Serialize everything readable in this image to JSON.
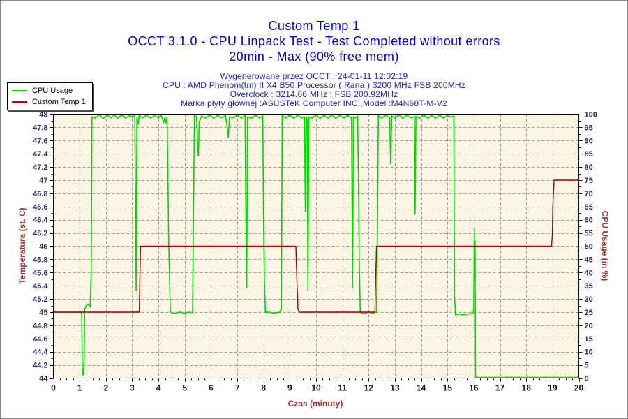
{
  "titles": {
    "line1": "Custom Temp 1",
    "line2": "OCCT 3.1.0 - CPU Linpack Test - Test Completed without errors",
    "line3": "20min - Max (90% free mem)"
  },
  "info": {
    "line1": "Wygenerowane przez OCCT : 24-01-11 12:02:19",
    "line2": "CPU : AMD Phenom(tm) II X4 B50 Processor ( Rana ) 3200 MHz FSB 200MHz",
    "line3": "Overclock : 3214.66 MHz ; FSB 200.92MHz",
    "line4": "Marka płyty głównej :ASUSTeK Computer INC.,Model :M4N68T-M-V2"
  },
  "legend": {
    "items": [
      {
        "label": "CPU Usage",
        "color": "#00d800"
      },
      {
        "label": "Custom Temp 1",
        "color": "#a00808"
      }
    ]
  },
  "colors": {
    "title_blue": "#0000e0",
    "info_blue": "#2222cc",
    "plot_bg": "#fcf5e3",
    "grid": "#999999",
    "axis": "#000000",
    "y_tick_label": "#2a2a5e",
    "x_tick_label": "#111111",
    "axis_title_red": "#a23333",
    "cpu_green": "#00d800",
    "temp_red": "#a00808"
  },
  "chart_data": {
    "type": "line",
    "title": "Custom Temp 1",
    "xlabel": "Czas (minuty)",
    "ylabel_left": "Temperatura (st. C)",
    "ylabel_right": "CPU Usage (in %)",
    "grid": true,
    "legend_position": "top-left",
    "xlim": [
      0,
      20
    ],
    "x_major": 1,
    "x_minor": 0.25,
    "ylim_left": [
      44,
      48
    ],
    "y_left_major": 0.2,
    "y_left_minor": 0.1,
    "ylim_right": [
      0,
      100
    ],
    "y_right_major": 5,
    "y_right_minor": 2.5,
    "series": [
      {
        "name": "CPU Usage",
        "axis": "right",
        "unit": "%",
        "points": [
          [
            0,
            25
          ],
          [
            0.5,
            25
          ],
          [
            1.05,
            25
          ],
          [
            1.08,
            24
          ],
          [
            1.1,
            2
          ],
          [
            1.14,
            1
          ],
          [
            1.17,
            8
          ],
          [
            1.19,
            26
          ],
          [
            1.25,
            27.5
          ],
          [
            1.33,
            28
          ],
          [
            1.4,
            27
          ],
          [
            1.44,
            40
          ],
          [
            1.47,
            99
          ],
          [
            1.6,
            98.5
          ],
          [
            1.75,
            99.8
          ],
          [
            1.9,
            98.3
          ],
          [
            2.05,
            99.6
          ],
          [
            2.2,
            98.6
          ],
          [
            2.3,
            99.8
          ],
          [
            2.45,
            98.4
          ],
          [
            2.6,
            99.7
          ],
          [
            2.75,
            98.5
          ],
          [
            2.9,
            99.6
          ],
          [
            3.0,
            98.8
          ],
          [
            3.1,
            99.5
          ],
          [
            3.13,
            63
          ],
          [
            3.15,
            33
          ],
          [
            3.18,
            99
          ],
          [
            3.22,
            96
          ],
          [
            3.27,
            99.5
          ],
          [
            3.4,
            98.6
          ],
          [
            3.55,
            99.7
          ],
          [
            3.7,
            98.5
          ],
          [
            3.85,
            99.6
          ],
          [
            4.0,
            98.6
          ],
          [
            4.1,
            99.5
          ],
          [
            4.2,
            97
          ],
          [
            4.25,
            99
          ],
          [
            4.3,
            96.5
          ],
          [
            4.33,
            99
          ],
          [
            4.36,
            75
          ],
          [
            4.39,
            50
          ],
          [
            4.42,
            40
          ],
          [
            4.45,
            25
          ],
          [
            4.6,
            24.5
          ],
          [
            4.8,
            25
          ],
          [
            5.0,
            24.6
          ],
          [
            5.15,
            25
          ],
          [
            5.3,
            24.8
          ],
          [
            5.34,
            70
          ],
          [
            5.37,
            99.5
          ],
          [
            5.45,
            99
          ],
          [
            5.49,
            88
          ],
          [
            5.52,
            84
          ],
          [
            5.55,
            97
          ],
          [
            5.65,
            99.3
          ],
          [
            5.8,
            98.5
          ],
          [
            5.95,
            99.7
          ],
          [
            6.1,
            98.4
          ],
          [
            6.25,
            99.6
          ],
          [
            6.4,
            98.6
          ],
          [
            6.55,
            99.5
          ],
          [
            6.62,
            95
          ],
          [
            6.66,
            91
          ],
          [
            6.7,
            99
          ],
          [
            6.85,
            98.6
          ],
          [
            7.0,
            99.7
          ],
          [
            7.15,
            98.5
          ],
          [
            7.3,
            99.5
          ],
          [
            7.33,
            60
          ],
          [
            7.36,
            34
          ],
          [
            7.39,
            99
          ],
          [
            7.55,
            98.5
          ],
          [
            7.7,
            99.6
          ],
          [
            7.85,
            98.5
          ],
          [
            7.97,
            99.3
          ],
          [
            8.0,
            60
          ],
          [
            8.03,
            39
          ],
          [
            8.07,
            25
          ],
          [
            8.2,
            25
          ],
          [
            8.4,
            24.6
          ],
          [
            8.6,
            25
          ],
          [
            8.68,
            26
          ],
          [
            8.71,
            99.5
          ],
          [
            8.85,
            98.5
          ],
          [
            9.0,
            99.7
          ],
          [
            9.15,
            98.4
          ],
          [
            9.3,
            99.6
          ],
          [
            9.45,
            98.6
          ],
          [
            9.56,
            99
          ],
          [
            9.59,
            63
          ],
          [
            9.62,
            99
          ],
          [
            9.66,
            98
          ],
          [
            9.69,
            33
          ],
          [
            9.72,
            99
          ],
          [
            9.85,
            98.5
          ],
          [
            10.0,
            99.7
          ],
          [
            10.15,
            98.4
          ],
          [
            10.3,
            99.6
          ],
          [
            10.45,
            98.5
          ],
          [
            10.6,
            99.7
          ],
          [
            10.75,
            98.4
          ],
          [
            10.9,
            99.6
          ],
          [
            11.05,
            98.5
          ],
          [
            11.2,
            99.5
          ],
          [
            11.35,
            98.5
          ],
          [
            11.39,
            34
          ],
          [
            11.42,
            99
          ],
          [
            11.5,
            98.6
          ],
          [
            11.58,
            99.2
          ],
          [
            11.62,
            70
          ],
          [
            11.64,
            47
          ],
          [
            11.68,
            25
          ],
          [
            11.8,
            24.3
          ],
          [
            12.0,
            25
          ],
          [
            12.15,
            24.6
          ],
          [
            12.3,
            25
          ],
          [
            12.34,
            60
          ],
          [
            12.37,
            99.5
          ],
          [
            12.5,
            98.5
          ],
          [
            12.65,
            99.7
          ],
          [
            12.8,
            98.6
          ],
          [
            12.84,
            81
          ],
          [
            12.88,
            99.3
          ],
          [
            13.0,
            98.5
          ],
          [
            13.15,
            99.7
          ],
          [
            13.3,
            98.4
          ],
          [
            13.45,
            99.6
          ],
          [
            13.6,
            98.6
          ],
          [
            13.74,
            99
          ],
          [
            13.77,
            62
          ],
          [
            13.8,
            99.2
          ],
          [
            13.95,
            98.5
          ],
          [
            14.1,
            99.7
          ],
          [
            14.25,
            98.4
          ],
          [
            14.4,
            99.6
          ],
          [
            14.55,
            98.5
          ],
          [
            14.7,
            99.7
          ],
          [
            14.85,
            98.5
          ],
          [
            15.0,
            99.6
          ],
          [
            15.15,
            98.8
          ],
          [
            15.24,
            99.3
          ],
          [
            15.27,
            31
          ],
          [
            15.31,
            24
          ],
          [
            15.45,
            24.3
          ],
          [
            15.6,
            24
          ],
          [
            15.8,
            24.3
          ],
          [
            15.97,
            24.5
          ],
          [
            16.0,
            26
          ],
          [
            16.02,
            57
          ],
          [
            16.04,
            37
          ],
          [
            16.05,
            52
          ],
          [
            16.07,
            0.3
          ],
          [
            17.0,
            0.3
          ],
          [
            18.0,
            0.3
          ],
          [
            19.0,
            0.3
          ],
          [
            20,
            0.3
          ]
        ]
      },
      {
        "name": "Custom Temp 1",
        "axis": "left",
        "unit": "st. C",
        "points": [
          [
            0,
            45
          ],
          [
            1,
            45
          ],
          [
            2,
            45
          ],
          [
            3.27,
            45
          ],
          [
            3.29,
            45.5
          ],
          [
            3.32,
            46
          ],
          [
            5,
            46
          ],
          [
            7,
            46
          ],
          [
            9.23,
            46
          ],
          [
            9.26,
            45.6
          ],
          [
            9.31,
            45.05
          ],
          [
            9.35,
            45
          ],
          [
            10.5,
            45
          ],
          [
            12.24,
            45
          ],
          [
            12.26,
            45.4
          ],
          [
            12.3,
            46
          ],
          [
            14,
            46
          ],
          [
            16,
            46
          ],
          [
            18,
            46
          ],
          [
            18.96,
            46
          ],
          [
            18.99,
            46.15
          ],
          [
            19.01,
            46.6
          ],
          [
            19.06,
            47
          ],
          [
            19.5,
            47
          ],
          [
            20,
            47
          ]
        ]
      }
    ]
  }
}
